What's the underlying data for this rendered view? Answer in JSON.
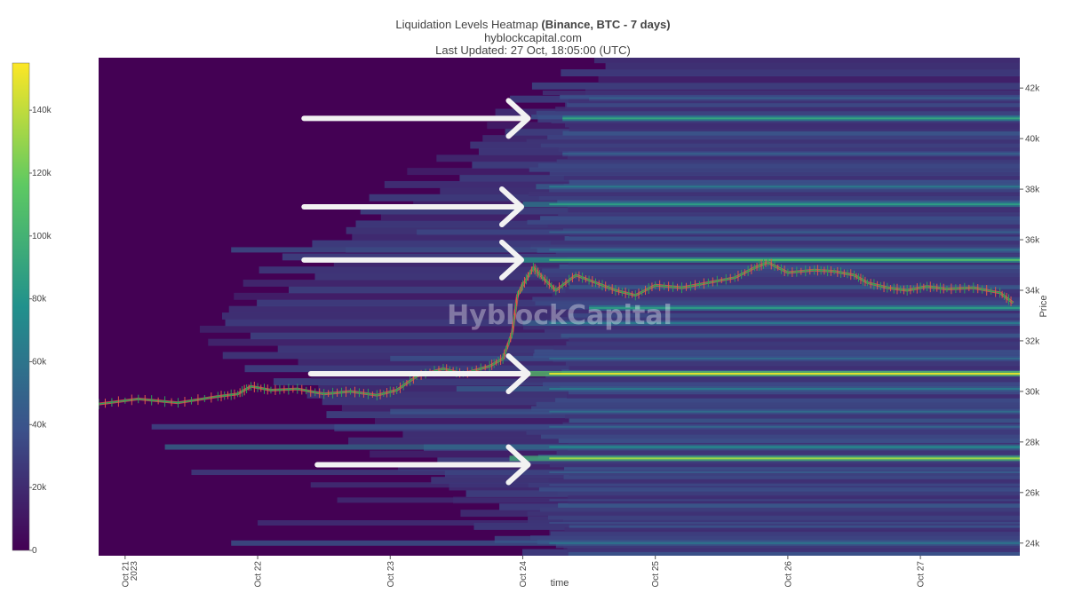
{
  "header": {
    "title_prefix": "Liquidation Levels Heatmap ",
    "title_bold": "(Binance, BTC - 7 days)",
    "subtitle": "hyblockcapital.com",
    "updated": "Last Updated: 27 Oct, 18:05:00 (UTC)"
  },
  "watermark": "HyblockCapital",
  "colors": {
    "background": "#440154",
    "scale": [
      "#440154",
      "#3b528b",
      "#21918c",
      "#5ec962",
      "#fde725"
    ],
    "candle_up": "#2ca05a",
    "candle_down": "#e0584a",
    "arrow": "#f2f2f2"
  },
  "chart_data": {
    "type": "heatmap",
    "title": "Liquidation Levels Heatmap (Binance, BTC - 7 days)",
    "xlabel": "time",
    "ylabel": "Price",
    "x_ticks": [
      {
        "day": 0,
        "label": "Oct 21",
        "sub": "2023"
      },
      {
        "day": 1,
        "label": "Oct 22",
        "sub": ""
      },
      {
        "day": 2,
        "label": "Oct 23",
        "sub": ""
      },
      {
        "day": 3,
        "label": "Oct 24",
        "sub": ""
      },
      {
        "day": 4,
        "label": "Oct 25",
        "sub": ""
      },
      {
        "day": 5,
        "label": "Oct 26",
        "sub": ""
      },
      {
        "day": 6,
        "label": "Oct 27",
        "sub": ""
      }
    ],
    "xlim_days": [
      -0.2,
      6.75
    ],
    "y_ticks": [
      {
        "value": 24000,
        "label": "24k"
      },
      {
        "value": 26000,
        "label": "26k"
      },
      {
        "value": 28000,
        "label": "28k"
      },
      {
        "value": 30000,
        "label": "30k"
      },
      {
        "value": 32000,
        "label": "32k"
      },
      {
        "value": 34000,
        "label": "34k"
      },
      {
        "value": 36000,
        "label": "36k"
      },
      {
        "value": 38000,
        "label": "38k"
      },
      {
        "value": 40000,
        "label": "40k"
      },
      {
        "value": 42000,
        "label": "42k"
      }
    ],
    "ylim": [
      23500,
      43200
    ],
    "colorbar": {
      "range": [
        0,
        155000
      ],
      "ticks": [
        {
          "value": 0,
          "label": "0"
        },
        {
          "value": 20000,
          "label": "20k"
        },
        {
          "value": 40000,
          "label": "40k"
        },
        {
          "value": 60000,
          "label": "60k"
        },
        {
          "value": 80000,
          "label": "80k"
        },
        {
          "value": 100000,
          "label": "100k"
        },
        {
          "value": 120000,
          "label": "120k"
        },
        {
          "value": 140000,
          "label": "140k"
        }
      ]
    },
    "liquidation_bands": [
      {
        "price": 24000,
        "start_day": 0.8,
        "intensity": 0.38
      },
      {
        "price": 24800,
        "start_day": 1.0,
        "intensity": 0.22
      },
      {
        "price": 25700,
        "start_day": 1.6,
        "intensity": 0.2
      },
      {
        "price": 26300,
        "start_day": 1.4,
        "intensity": 0.22
      },
      {
        "price": 26800,
        "start_day": 0.5,
        "intensity": 0.28
      },
      {
        "price": 27350,
        "start_day": 2.9,
        "intensity": 0.85
      },
      {
        "price": 27800,
        "start_day": 0.3,
        "intensity": 0.48
      },
      {
        "price": 28600,
        "start_day": 0.2,
        "intensity": 0.32
      },
      {
        "price": 29200,
        "start_day": 2.0,
        "intensity": 0.35
      },
      {
        "price": 30100,
        "start_day": 2.5,
        "intensity": 0.4
      },
      {
        "price": 30700,
        "start_day": 2.9,
        "intensity": 0.95
      },
      {
        "price": 31300,
        "start_day": 2.0,
        "intensity": 0.34
      },
      {
        "price": 32700,
        "start_day": 3.0,
        "intensity": 0.4
      },
      {
        "price": 33300,
        "start_day": 3.5,
        "intensity": 0.55
      },
      {
        "price": 35200,
        "start_day": 3.0,
        "intensity": 0.7
      },
      {
        "price": 35600,
        "start_day": 0.8,
        "intensity": 0.36
      },
      {
        "price": 36300,
        "start_day": 2.2,
        "intensity": 0.3
      },
      {
        "price": 37400,
        "start_day": 3.0,
        "intensity": 0.55
      },
      {
        "price": 38100,
        "start_day": 3.1,
        "intensity": 0.4
      },
      {
        "price": 39400,
        "start_day": 3.3,
        "intensity": 0.3
      },
      {
        "price": 40800,
        "start_day": 3.3,
        "intensity": 0.58
      },
      {
        "price": 41600,
        "start_day": 3.5,
        "intensity": 0.3
      }
    ],
    "price_series": [
      {
        "day": -0.2,
        "price": 29500
      },
      {
        "day": 0.1,
        "price": 29700
      },
      {
        "day": 0.4,
        "price": 29550
      },
      {
        "day": 0.7,
        "price": 29800
      },
      {
        "day": 0.85,
        "price": 29900
      },
      {
        "day": 0.95,
        "price": 30200
      },
      {
        "day": 1.1,
        "price": 30050
      },
      {
        "day": 1.3,
        "price": 30100
      },
      {
        "day": 1.5,
        "price": 29900
      },
      {
        "day": 1.7,
        "price": 30000
      },
      {
        "day": 1.9,
        "price": 29850
      },
      {
        "day": 2.05,
        "price": 30050
      },
      {
        "day": 2.2,
        "price": 30600
      },
      {
        "day": 2.4,
        "price": 30900
      },
      {
        "day": 2.55,
        "price": 30700
      },
      {
        "day": 2.75,
        "price": 31000
      },
      {
        "day": 2.85,
        "price": 31300
      },
      {
        "day": 2.92,
        "price": 32300
      },
      {
        "day": 2.96,
        "price": 33800
      },
      {
        "day": 3.0,
        "price": 34200
      },
      {
        "day": 3.08,
        "price": 34900
      },
      {
        "day": 3.15,
        "price": 34500
      },
      {
        "day": 3.25,
        "price": 34000
      },
      {
        "day": 3.4,
        "price": 34600
      },
      {
        "day": 3.55,
        "price": 34300
      },
      {
        "day": 3.7,
        "price": 34000
      },
      {
        "day": 3.85,
        "price": 33800
      },
      {
        "day": 4.0,
        "price": 34200
      },
      {
        "day": 4.2,
        "price": 34100
      },
      {
        "day": 4.4,
        "price": 34300
      },
      {
        "day": 4.6,
        "price": 34500
      },
      {
        "day": 4.75,
        "price": 34900
      },
      {
        "day": 4.85,
        "price": 35100
      },
      {
        "day": 5.0,
        "price": 34700
      },
      {
        "day": 5.2,
        "price": 34800
      },
      {
        "day": 5.35,
        "price": 34750
      },
      {
        "day": 5.5,
        "price": 34600
      },
      {
        "day": 5.6,
        "price": 34300
      },
      {
        "day": 5.75,
        "price": 34100
      },
      {
        "day": 5.9,
        "price": 34000
      },
      {
        "day": 6.05,
        "price": 34150
      },
      {
        "day": 6.2,
        "price": 34050
      },
      {
        "day": 6.4,
        "price": 34100
      },
      {
        "day": 6.6,
        "price": 33900
      },
      {
        "day": 6.7,
        "price": 33500
      }
    ]
  }
}
